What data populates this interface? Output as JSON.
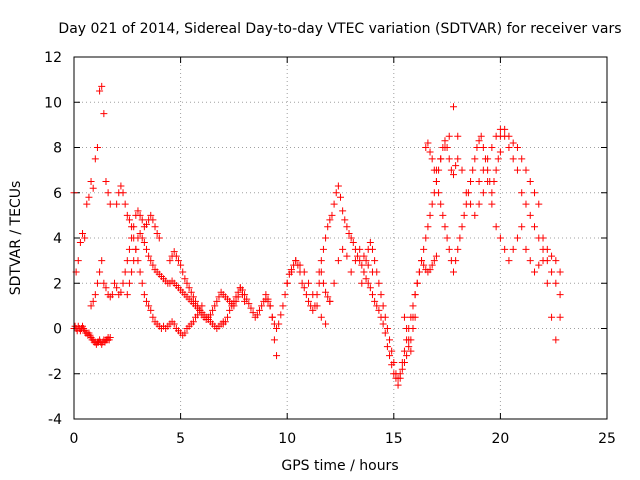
{
  "chart_data": {
    "type": "scatter",
    "title": "Day 021 of 2014, Sidereal Day-to-day VTEC variation (SDTVAR) for receiver vars",
    "xlabel": "GPS time / hours",
    "ylabel": "SDTVAR / TECUs",
    "xlim": [
      0,
      25
    ],
    "ylim": [
      -4,
      12
    ],
    "xticks": [
      0,
      5,
      10,
      15,
      20,
      25
    ],
    "yticks": [
      -4,
      -2,
      0,
      2,
      4,
      6,
      8,
      10,
      12
    ],
    "grid": true,
    "marker": "+",
    "marker_color": "#ff0000",
    "series": [
      {
        "name": "SDTVAR",
        "x": [
          0.0,
          0.05,
          0.1,
          0.15,
          0.2,
          0.25,
          0.3,
          0.35,
          0.4,
          0.45,
          0.5,
          0.55,
          0.6,
          0.65,
          0.7,
          0.75,
          0.8,
          0.85,
          0.9,
          0.95,
          1.0,
          1.05,
          1.1,
          1.15,
          1.2,
          1.25,
          1.3,
          1.35,
          1.4,
          1.45,
          1.5,
          1.55,
          1.6,
          1.65,
          1.7,
          0.0,
          0.1,
          0.2,
          0.3,
          0.4,
          0.5,
          0.6,
          0.7,
          0.8,
          0.9,
          1.0,
          1.1,
          1.2,
          1.3,
          1.4,
          1.5,
          1.6,
          1.7,
          0.8,
          0.9,
          1.0,
          1.1,
          1.2,
          1.3,
          1.4,
          1.5,
          1.6,
          1.7,
          1.8,
          1.9,
          2.0,
          2.1,
          2.2,
          2.3,
          2.4,
          2.5,
          2.6,
          2.7,
          2.8,
          2.9,
          3.0,
          3.1,
          3.2,
          3.3,
          3.4,
          3.5,
          3.6,
          3.7,
          3.8,
          3.9,
          4.0,
          2.0,
          2.1,
          2.2,
          2.3,
          2.4,
          2.5,
          2.6,
          2.7,
          2.8,
          2.9,
          3.0,
          3.1,
          3.2,
          3.3,
          3.4,
          3.5,
          3.6,
          3.7,
          3.8,
          3.9,
          4.0,
          4.1,
          4.2,
          4.3,
          4.4,
          4.5,
          4.6,
          4.7,
          4.8,
          4.9,
          5.0,
          5.1,
          5.2,
          5.3,
          5.4,
          5.5,
          5.6,
          5.7,
          5.8,
          5.9,
          6.0,
          2.5,
          2.6,
          2.7,
          2.8,
          2.9,
          3.0,
          3.1,
          3.2,
          3.3,
          3.4,
          3.5,
          3.6,
          3.7,
          3.8,
          3.9,
          4.0,
          4.1,
          4.2,
          4.3,
          4.4,
          4.5,
          4.6,
          4.7,
          4.8,
          4.9,
          5.0,
          5.1,
          5.2,
          5.3,
          5.4,
          5.5,
          5.6,
          5.7,
          5.8,
          5.9,
          6.0,
          6.1,
          6.2,
          6.3,
          6.4,
          6.5,
          6.6,
          6.7,
          6.8,
          6.9,
          7.0,
          4.5,
          4.6,
          4.7,
          4.8,
          4.9,
          5.0,
          5.1,
          5.2,
          5.3,
          5.4,
          5.5,
          5.6,
          5.7,
          5.8,
          5.9,
          6.0,
          6.1,
          6.2,
          6.3,
          6.4,
          6.5,
          6.6,
          6.7,
          6.8,
          6.9,
          7.0,
          7.1,
          7.2,
          7.3,
          7.4,
          7.5,
          7.6,
          7.7,
          7.8,
          7.9,
          8.0,
          7.0,
          7.1,
          7.2,
          7.3,
          7.4,
          7.5,
          7.6,
          7.7,
          7.8,
          7.9,
          8.0,
          8.1,
          8.2,
          8.3,
          8.4,
          8.5,
          8.6,
          8.7,
          8.8,
          8.9,
          9.0,
          9.1,
          9.2,
          9.3,
          9.4,
          9.5,
          9.0,
          9.1,
          9.2,
          9.3,
          9.4,
          9.5,
          9.6,
          9.7,
          9.8,
          9.9,
          10.0,
          10.1,
          10.2,
          10.3,
          10.4,
          10.5,
          10.6,
          10.7,
          10.8,
          10.9,
          11.0,
          11.1,
          11.2,
          11.3,
          11.4,
          11.5,
          11.6,
          11.7,
          11.8,
          11.9,
          12.0,
          10.0,
          10.2,
          10.4,
          10.6,
          10.8,
          11.0,
          11.2,
          11.4,
          11.6,
          11.8,
          12.0,
          12.2,
          12.4,
          12.6,
          12.8,
          13.0,
          13.2,
          13.4,
          13.6,
          13.8,
          14.0,
          11.5,
          11.6,
          11.7,
          11.8,
          11.9,
          12.0,
          12.1,
          12.2,
          12.3,
          12.4,
          12.5,
          12.6,
          12.7,
          12.8,
          12.9,
          13.0,
          13.1,
          13.2,
          13.3,
          13.4,
          13.5,
          13.6,
          13.7,
          13.8,
          13.9,
          14.0,
          14.1,
          14.2,
          14.3,
          14.4,
          14.5,
          14.6,
          14.7,
          14.8,
          14.9,
          15.0,
          15.1,
          15.2,
          15.3,
          15.4,
          15.5,
          15.6,
          15.7,
          15.8,
          15.9,
          16.0,
          13.5,
          13.6,
          13.7,
          13.8,
          13.9,
          14.0,
          14.1,
          14.2,
          14.3,
          14.4,
          14.5,
          14.6,
          14.7,
          14.8,
          14.9,
          15.0,
          15.1,
          15.2,
          15.3,
          15.4,
          15.5,
          15.6,
          15.7,
          15.8,
          15.9,
          16.0,
          16.1,
          16.2,
          16.3,
          16.4,
          16.5,
          16.6,
          16.7,
          16.8,
          16.9,
          17.0,
          15.5,
          15.6,
          15.7,
          15.8,
          15.9,
          16.0,
          16.1,
          16.2,
          16.3,
          16.4,
          16.5,
          16.6,
          16.7,
          16.8,
          16.9,
          17.0,
          17.1,
          17.2,
          17.3,
          17.4,
          17.5,
          17.6,
          17.7,
          17.8,
          17.9,
          18.0,
          16.5,
          16.6,
          16.7,
          16.8,
          16.9,
          17.0,
          17.1,
          17.2,
          17.3,
          17.4,
          17.5,
          17.6,
          17.7,
          17.8,
          17.9,
          18.0,
          18.1,
          18.2,
          18.3,
          18.4,
          18.5,
          18.6,
          18.7,
          18.8,
          18.9,
          19.0,
          19.1,
          19.2,
          19.3,
          19.4,
          19.5,
          19.6,
          19.7,
          19.8,
          19.9,
          20.0,
          17.0,
          17.2,
          17.4,
          17.6,
          17.8,
          18.0,
          18.2,
          18.4,
          18.6,
          18.8,
          19.0,
          19.2,
          19.4,
          19.6,
          19.8,
          20.0,
          20.2,
          20.4,
          20.6,
          20.8,
          21.0,
          21.2,
          21.4,
          21.6,
          21.8,
          22.0,
          22.2,
          22.4,
          22.6,
          22.8,
          19.0,
          19.2,
          19.4,
          19.6,
          19.8,
          20.0,
          20.2,
          20.4,
          20.6,
          20.8,
          21.0,
          21.2,
          21.4,
          21.6,
          21.8,
          22.0,
          22.2,
          22.4,
          22.6,
          22.8,
          20.0,
          20.2,
          20.4,
          20.6,
          20.8,
          21.0,
          21.2,
          21.4,
          21.6,
          21.8,
          22.0,
          22.2,
          22.4,
          22.6,
          22.8
        ],
        "y": [
          0.0,
          0.1,
          0.0,
          -0.1,
          0.1,
          0.0,
          -0.1,
          0.0,
          0.1,
          0.0,
          -0.1,
          -0.2,
          -0.2,
          -0.3,
          -0.2,
          -0.3,
          -0.4,
          -0.5,
          -0.5,
          -0.6,
          -0.6,
          -0.7,
          -0.6,
          -0.6,
          -0.5,
          -0.6,
          -0.7,
          -0.6,
          -0.5,
          -0.6,
          -0.5,
          -0.5,
          -0.4,
          -0.5,
          -0.4,
          6.0,
          2.5,
          3.0,
          3.8,
          4.2,
          4.0,
          5.5,
          5.8,
          6.5,
          6.2,
          7.5,
          8.0,
          10.5,
          10.7,
          9.5,
          6.5,
          6.0,
          5.5,
          1.0,
          1.2,
          1.5,
          2.0,
          2.5,
          3.0,
          2.0,
          1.8,
          1.5,
          1.4,
          1.5,
          2.0,
          1.8,
          1.5,
          1.6,
          2.0,
          2.5,
          3.0,
          3.5,
          4.0,
          4.5,
          5.0,
          5.2,
          5.0,
          4.8,
          4.5,
          4.6,
          4.8,
          5.0,
          4.8,
          4.5,
          4.2,
          4.0,
          5.5,
          6.0,
          6.3,
          6.0,
          5.5,
          5.0,
          4.8,
          4.5,
          4.0,
          3.5,
          3.0,
          2.5,
          2.0,
          1.5,
          1.2,
          1.0,
          0.8,
          0.5,
          0.3,
          0.2,
          0.1,
          0.0,
          0.1,
          0.0,
          0.1,
          0.2,
          0.3,
          0.2,
          0.0,
          -0.1,
          -0.2,
          -0.3,
          -0.2,
          0.0,
          0.1,
          0.2,
          0.3,
          0.5,
          0.6,
          0.8,
          1.0,
          1.5,
          2.0,
          2.5,
          3.0,
          3.5,
          4.0,
          4.2,
          4.0,
          3.8,
          3.5,
          3.2,
          3.0,
          2.8,
          2.6,
          2.5,
          2.4,
          2.3,
          2.2,
          2.1,
          2.0,
          2.0,
          2.1,
          2.0,
          1.9,
          1.8,
          1.7,
          1.6,
          1.5,
          1.4,
          1.3,
          1.2,
          1.1,
          1.0,
          0.9,
          0.8,
          0.7,
          0.6,
          0.5,
          0.4,
          0.3,
          0.2,
          0.1,
          0.0,
          0.1,
          0.2,
          0.3,
          3.0,
          3.2,
          3.4,
          3.2,
          3.0,
          2.8,
          2.5,
          2.2,
          2.0,
          1.8,
          1.6,
          1.4,
          1.2,
          1.0,
          0.8,
          0.6,
          0.5,
          0.4,
          0.5,
          0.6,
          0.8,
          1.0,
          1.2,
          1.4,
          1.6,
          1.5,
          1.4,
          1.3,
          1.2,
          1.1,
          1.0,
          1.2,
          1.4,
          1.8,
          1.5,
          1.2,
          0.2,
          0.3,
          0.5,
          0.8,
          1.0,
          1.2,
          1.4,
          1.6,
          1.8,
          1.7,
          1.5,
          1.3,
          1.1,
          0.9,
          0.7,
          0.5,
          0.6,
          0.8,
          1.0,
          1.2,
          1.3,
          1.2,
          1.0,
          0.5,
          -0.5,
          -1.2,
          1.5,
          1.3,
          1.0,
          0.5,
          0.2,
          0.0,
          0.2,
          0.6,
          1.0,
          1.5,
          2.0,
          2.4,
          2.6,
          2.8,
          3.0,
          2.8,
          2.5,
          2.0,
          1.8,
          1.5,
          1.2,
          1.0,
          0.8,
          1.0,
          1.5,
          2.0,
          2.5,
          2.0,
          1.6,
          1.4,
          1.2,
          2.0,
          2.5,
          3.0,
          2.8,
          2.5,
          2.0,
          1.5,
          1.0,
          0.5,
          0.2,
          1.2,
          2.0,
          3.0,
          3.5,
          3.2,
          2.5,
          3.0,
          3.5,
          3.2,
          2.8,
          2.5,
          2.5,
          3.0,
          3.5,
          4.0,
          4.5,
          4.8,
          5.0,
          5.5,
          6.0,
          6.3,
          5.8,
          5.2,
          4.8,
          4.5,
          4.2,
          4.0,
          3.8,
          3.5,
          3.2,
          3.0,
          2.8,
          2.5,
          2.2,
          2.0,
          1.8,
          1.5,
          1.2,
          1.0,
          0.8,
          0.5,
          0.2,
          -0.2,
          -0.8,
          -1.2,
          -1.6,
          -2.0,
          -2.2,
          -2.5,
          -2.2,
          -1.8,
          -1.5,
          -1.2,
          -0.8,
          -0.5,
          0.0,
          0.5,
          2.0,
          2.5,
          3.0,
          3.5,
          3.8,
          3.5,
          3.0,
          2.5,
          2.0,
          1.5,
          1.0,
          0.5,
          0.0,
          -0.5,
          -1.0,
          -1.5,
          -2.0,
          -2.2,
          -2.0,
          -1.5,
          -1.0,
          -0.5,
          0.0,
          0.5,
          1.0,
          1.5,
          2.0,
          2.5,
          3.0,
          2.8,
          2.6,
          2.5,
          2.6,
          2.8,
          3.0,
          3.2,
          0.5,
          0.0,
          -0.5,
          -1.0,
          0.5,
          1.5,
          2.0,
          2.5,
          3.0,
          3.5,
          4.0,
          4.5,
          5.0,
          5.5,
          6.0,
          6.5,
          7.0,
          7.5,
          8.0,
          8.3,
          8.0,
          7.5,
          7.0,
          6.8,
          7.2,
          7.5,
          8.0,
          8.2,
          7.8,
          7.5,
          7.0,
          6.5,
          6.0,
          5.5,
          5.0,
          4.5,
          4.0,
          3.5,
          3.0,
          2.5,
          3.0,
          3.5,
          4.0,
          4.5,
          5.0,
          5.5,
          6.0,
          6.5,
          7.0,
          7.5,
          8.0,
          8.3,
          8.5,
          8.0,
          7.5,
          7.0,
          6.5,
          6.0,
          6.5,
          7.0,
          7.5,
          7.8,
          7.0,
          7.5,
          8.0,
          8.5,
          9.8,
          8.5,
          7.0,
          6.0,
          5.5,
          5.0,
          5.5,
          6.0,
          6.5,
          5.5,
          4.5,
          4.0,
          3.5,
          3.0,
          3.5,
          4.0,
          4.5,
          3.5,
          3.0,
          2.5,
          2.8,
          3.0,
          3.5,
          3.2,
          3.0,
          2.5,
          6.5,
          7.0,
          7.5,
          8.0,
          8.5,
          8.8,
          8.5,
          8.0,
          7.5,
          7.0,
          6.0,
          5.5,
          5.0,
          4.5,
          4.0,
          3.5,
          3.0,
          2.5,
          2.0,
          1.5,
          8.5,
          8.8,
          8.5,
          8.2,
          8.0,
          7.5,
          7.0,
          6.5,
          6.0,
          5.5,
          4.0,
          2.0,
          0.5,
          -0.5,
          0.5
        ]
      }
    ]
  }
}
